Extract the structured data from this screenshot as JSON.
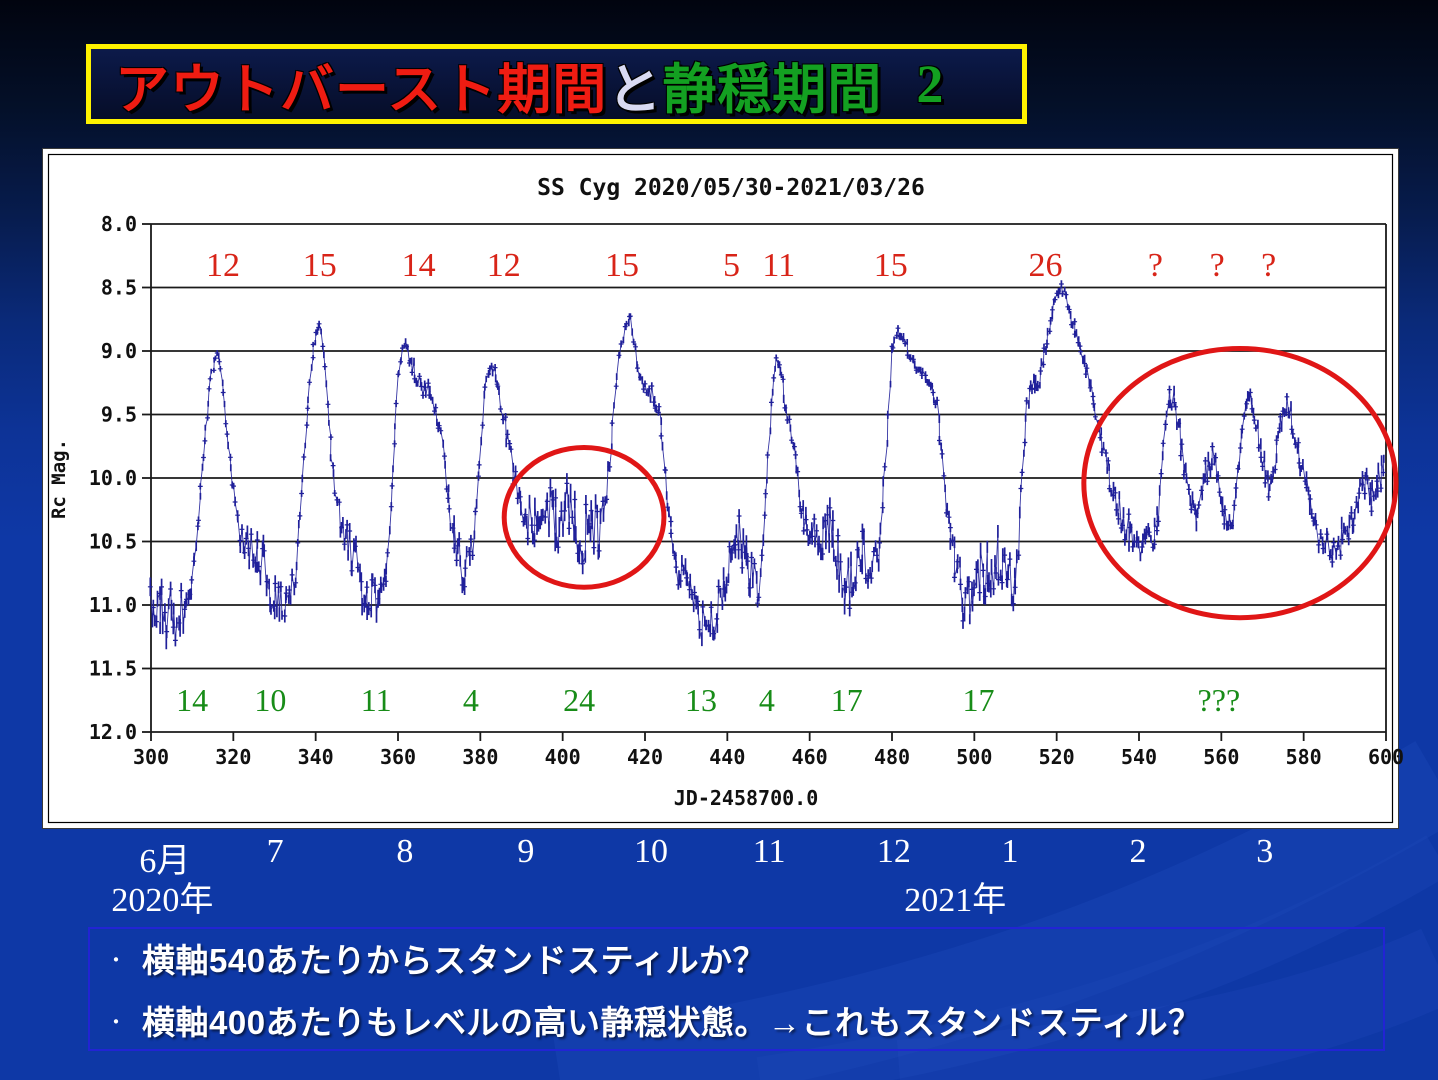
{
  "title": {
    "part_red": "アウトバースト期間",
    "connector": "と",
    "part_green": "静穏期間",
    "number": "2",
    "border_color": "#fef200",
    "red_color": "#ef1c12",
    "green_color": "#13a021"
  },
  "chart_data": {
    "type": "scatter",
    "title": "SS Cyg  2020/05/30-2021/03/26",
    "xlabel": "JD-2458700.0",
    "ylabel": "Rc Mag.",
    "xlim": [
      300,
      600
    ],
    "ylim": [
      8.0,
      12.0
    ],
    "y_axis_inverted": true,
    "x_ticks": [
      300,
      320,
      340,
      360,
      380,
      400,
      420,
      440,
      460,
      480,
      500,
      520,
      540,
      560,
      580,
      600
    ],
    "y_ticks": [
      8.0,
      8.5,
      9.0,
      9.5,
      10.0,
      10.5,
      11.0,
      11.5,
      12.0
    ],
    "grid": true,
    "marker_color": "#20209a",
    "series": [
      {
        "name": "SS Cyg Rc magnitude",
        "anchors_format": [
          "jd",
          "mag",
          "scatter_mag"
        ],
        "anchors": [
          [
            300,
            11.05,
            0.22
          ],
          [
            302,
            11.0,
            0.25
          ],
          [
            304,
            11.05,
            0.27
          ],
          [
            306,
            11.1,
            0.24
          ],
          [
            308,
            11.0,
            0.2
          ],
          [
            310,
            10.85,
            0.14
          ],
          [
            311.5,
            10.3,
            0.06
          ],
          [
            313,
            9.7,
            0.04
          ],
          [
            314.5,
            9.22,
            0.03
          ],
          [
            316,
            9.0,
            0.03
          ],
          [
            317,
            9.12,
            0.04
          ],
          [
            318.5,
            9.65,
            0.05
          ],
          [
            320,
            10.1,
            0.06
          ],
          [
            321.5,
            10.4,
            0.12
          ],
          [
            323,
            10.55,
            0.18
          ],
          [
            325,
            10.5,
            0.2
          ],
          [
            327,
            10.65,
            0.22
          ],
          [
            329,
            10.9,
            0.2
          ],
          [
            331,
            11.0,
            0.18
          ],
          [
            333,
            10.9,
            0.2
          ],
          [
            335,
            10.78,
            0.12
          ],
          [
            336.5,
            10.15,
            0.06
          ],
          [
            338,
            9.45,
            0.04
          ],
          [
            339.5,
            8.95,
            0.04
          ],
          [
            341,
            8.8,
            0.04
          ],
          [
            342.2,
            9.1,
            0.05
          ],
          [
            343.5,
            9.7,
            0.05
          ],
          [
            345,
            10.2,
            0.08
          ],
          [
            347,
            10.45,
            0.15
          ],
          [
            349,
            10.6,
            0.2
          ],
          [
            351,
            10.8,
            0.22
          ],
          [
            353,
            11.0,
            0.2
          ],
          [
            355,
            10.95,
            0.22
          ],
          [
            357,
            10.78,
            0.14
          ],
          [
            358.5,
            10.1,
            0.06
          ],
          [
            360,
            9.2,
            0.05
          ],
          [
            361.5,
            8.92,
            0.05
          ],
          [
            363,
            9.08,
            0.06
          ],
          [
            364.5,
            9.18,
            0.08
          ],
          [
            366,
            9.32,
            0.08
          ],
          [
            367.5,
            9.28,
            0.08
          ],
          [
            369,
            9.5,
            0.07
          ],
          [
            370.5,
            9.68,
            0.07
          ],
          [
            372,
            10.1,
            0.09
          ],
          [
            373.5,
            10.45,
            0.15
          ],
          [
            375,
            10.6,
            0.2
          ],
          [
            376.5,
            10.75,
            0.22
          ],
          [
            378.2,
            10.55,
            0.14
          ],
          [
            379.8,
            9.85,
            0.07
          ],
          [
            381.2,
            9.25,
            0.06
          ],
          [
            382.8,
            9.1,
            0.06
          ],
          [
            384.3,
            9.32,
            0.08
          ],
          [
            386,
            9.58,
            0.1
          ],
          [
            387.5,
            9.85,
            0.1
          ],
          [
            389,
            10.1,
            0.13
          ],
          [
            391,
            10.3,
            0.18
          ],
          [
            393,
            10.38,
            0.22
          ],
          [
            395,
            10.28,
            0.25
          ],
          [
            397,
            10.22,
            0.25
          ],
          [
            399,
            10.4,
            0.26
          ],
          [
            401,
            10.25,
            0.26
          ],
          [
            403,
            10.32,
            0.28
          ],
          [
            405,
            10.45,
            0.26
          ],
          [
            407,
            10.3,
            0.26
          ],
          [
            409,
            10.42,
            0.2
          ],
          [
            410.8,
            10.15,
            0.12
          ],
          [
            412.2,
            9.55,
            0.07
          ],
          [
            413.6,
            9.05,
            0.05
          ],
          [
            415,
            8.85,
            0.05
          ],
          [
            416.5,
            8.73,
            0.05
          ],
          [
            417.6,
            9.0,
            0.05
          ],
          [
            419,
            9.25,
            0.07
          ],
          [
            420.5,
            9.32,
            0.08
          ],
          [
            422,
            9.35,
            0.08
          ],
          [
            423.5,
            9.5,
            0.07
          ],
          [
            425,
            10.0,
            0.09
          ],
          [
            426.5,
            10.45,
            0.13
          ],
          [
            428,
            10.7,
            0.18
          ],
          [
            430,
            10.9,
            0.2
          ],
          [
            432,
            11.05,
            0.22
          ],
          [
            434,
            11.12,
            0.22
          ],
          [
            436,
            11.15,
            0.18
          ],
          [
            438,
            11.0,
            0.18
          ],
          [
            440,
            10.75,
            0.2
          ],
          [
            441.5,
            10.5,
            0.23
          ],
          [
            443,
            10.45,
            0.25
          ],
          [
            444.5,
            10.6,
            0.25
          ],
          [
            446,
            10.8,
            0.23
          ],
          [
            447.8,
            10.85,
            0.15
          ],
          [
            449.3,
            10.2,
            0.09
          ],
          [
            450.6,
            9.4,
            0.07
          ],
          [
            452,
            9.05,
            0.07
          ],
          [
            453.5,
            9.28,
            0.07
          ],
          [
            455,
            9.55,
            0.07
          ],
          [
            456.5,
            9.85,
            0.08
          ],
          [
            458,
            10.25,
            0.11
          ],
          [
            459.5,
            10.45,
            0.15
          ],
          [
            461,
            10.5,
            0.2
          ],
          [
            463,
            10.4,
            0.23
          ],
          [
            465,
            10.45,
            0.25
          ],
          [
            467,
            10.65,
            0.23
          ],
          [
            469,
            10.85,
            0.22
          ],
          [
            471,
            10.8,
            0.23
          ],
          [
            473,
            10.6,
            0.25
          ],
          [
            475,
            10.75,
            0.21
          ],
          [
            477,
            10.6,
            0.16
          ],
          [
            478.4,
            9.9,
            0.07
          ],
          [
            479.8,
            9.0,
            0.05
          ],
          [
            481.3,
            8.85,
            0.05
          ],
          [
            483.3,
            8.95,
            0.06
          ],
          [
            485.3,
            9.05,
            0.07
          ],
          [
            487.3,
            9.2,
            0.07
          ],
          [
            489.3,
            9.3,
            0.07
          ],
          [
            491,
            9.45,
            0.07
          ],
          [
            492.5,
            10.0,
            0.1
          ],
          [
            494,
            10.5,
            0.16
          ],
          [
            496,
            10.8,
            0.2
          ],
          [
            498,
            11.05,
            0.22
          ],
          [
            500,
            10.9,
            0.24
          ],
          [
            502,
            10.75,
            0.26
          ],
          [
            504,
            10.68,
            0.25
          ],
          [
            506,
            10.6,
            0.25
          ],
          [
            508,
            10.8,
            0.22
          ],
          [
            510,
            10.85,
            0.17
          ],
          [
            511.6,
            10.0,
            0.1
          ],
          [
            512.8,
            9.4,
            0.08
          ],
          [
            514,
            9.28,
            0.09
          ],
          [
            515.5,
            9.22,
            0.1
          ],
          [
            517,
            9.05,
            0.08
          ],
          [
            518.5,
            8.75,
            0.06
          ],
          [
            520,
            8.57,
            0.05
          ],
          [
            521.5,
            8.5,
            0.06
          ],
          [
            523,
            8.68,
            0.06
          ],
          [
            524.5,
            8.85,
            0.06
          ],
          [
            526,
            9.0,
            0.06
          ],
          [
            527.5,
            9.18,
            0.06
          ],
          [
            529,
            9.38,
            0.07
          ],
          [
            530.5,
            9.62,
            0.08
          ],
          [
            531.8,
            9.88,
            0.09
          ],
          [
            533,
            10.02,
            0.11
          ],
          [
            534.5,
            10.15,
            0.13
          ],
          [
            536,
            10.32,
            0.15
          ],
          [
            538,
            10.45,
            0.15
          ],
          [
            540,
            10.52,
            0.16
          ],
          [
            542,
            10.52,
            0.15
          ],
          [
            543.6,
            10.42,
            0.13
          ],
          [
            544.8,
            10.25,
            0.12
          ],
          [
            546,
            9.7,
            0.1
          ],
          [
            547.5,
            9.32,
            0.09
          ],
          [
            549,
            9.45,
            0.1
          ],
          [
            550.5,
            9.8,
            0.11
          ],
          [
            552,
            10.12,
            0.12
          ],
          [
            553.5,
            10.35,
            0.12
          ],
          [
            555,
            10.15,
            0.12
          ],
          [
            556.5,
            9.92,
            0.12
          ],
          [
            558,
            9.85,
            0.12
          ],
          [
            559.5,
            10.05,
            0.13
          ],
          [
            561,
            10.35,
            0.12
          ],
          [
            562.5,
            10.45,
            0.11
          ],
          [
            564,
            10.0,
            0.1
          ],
          [
            565.5,
            9.5,
            0.1
          ],
          [
            567,
            9.35,
            0.1
          ],
          [
            568.5,
            9.62,
            0.11
          ],
          [
            570,
            9.9,
            0.12
          ],
          [
            571.5,
            10.05,
            0.12
          ],
          [
            573,
            9.85,
            0.11
          ],
          [
            574.5,
            9.55,
            0.1
          ],
          [
            576,
            9.42,
            0.11
          ],
          [
            577.5,
            9.58,
            0.11
          ],
          [
            579,
            9.82,
            0.11
          ],
          [
            580.5,
            10.05,
            0.11
          ],
          [
            582,
            10.25,
            0.12
          ],
          [
            583.5,
            10.42,
            0.12
          ],
          [
            585.5,
            10.55,
            0.13
          ],
          [
            587.5,
            10.6,
            0.14
          ],
          [
            589.5,
            10.45,
            0.16
          ],
          [
            591.5,
            10.35,
            0.17
          ],
          [
            593.5,
            10.12,
            0.15
          ],
          [
            595,
            10.0,
            0.13
          ],
          [
            596.5,
            10.15,
            0.14
          ],
          [
            598,
            10.02,
            0.14
          ],
          [
            599.2,
            9.92,
            0.12
          ],
          [
            600,
            9.95,
            0.1
          ]
        ]
      }
    ],
    "outburst_day_counts": {
      "color": "#d82418",
      "labels": [
        {
          "text": "12",
          "jd": 317.5
        },
        {
          "text": "15",
          "jd": 341
        },
        {
          "text": "14",
          "jd": 365
        },
        {
          "text": "12",
          "jd": 385.7
        },
        {
          "text": "15",
          "jd": 414.4
        },
        {
          "text": "5",
          "jd": 441
        },
        {
          "text": "11",
          "jd": 452.5
        },
        {
          "text": "15",
          "jd": 479.7
        },
        {
          "text": "26",
          "jd": 517.3
        },
        {
          "text": "?",
          "jd": 544
        },
        {
          "text": "?",
          "jd": 559
        },
        {
          "text": "?",
          "jd": 571.5
        }
      ]
    },
    "quiescence_day_counts": {
      "color": "#188c18",
      "labels": [
        {
          "text": "14",
          "jd": 310
        },
        {
          "text": "10",
          "jd": 329
        },
        {
          "text": "11",
          "jd": 354.7
        },
        {
          "text": "4",
          "jd": 377.7
        },
        {
          "text": "24",
          "jd": 404
        },
        {
          "text": "13",
          "jd": 433.6
        },
        {
          "text": "4",
          "jd": 449.6
        },
        {
          "text": "17",
          "jd": 469
        },
        {
          "text": "17",
          "jd": 501
        },
        {
          "text": "???",
          "jd": 559.4
        }
      ]
    },
    "highlight_ellipses": [
      {
        "jd": 405.2,
        "mag": 10.31,
        "jd_r": 19.4,
        "mag_r": 0.55,
        "color": "#e01616"
      },
      {
        "jd": 564.5,
        "mag": 10.04,
        "jd_r": 37.9,
        "mag_r": 1.06,
        "color": "#e01616"
      }
    ],
    "month_axis": {
      "months": [
        {
          "label": "6月",
          "jd": 303.6
        },
        {
          "label": "7",
          "jd": 330.4
        },
        {
          "label": "8",
          "jd": 361.9
        },
        {
          "label": "9",
          "jd": 391.3
        },
        {
          "label": "10",
          "jd": 421.7
        },
        {
          "label": "11",
          "jd": 450.4
        },
        {
          "label": "12",
          "jd": 480.7
        },
        {
          "label": "1",
          "jd": 508.9
        },
        {
          "label": "2",
          "jd": 540.0
        },
        {
          "label": "3",
          "jd": 570.8
        }
      ],
      "years": [
        {
          "label": "2020年",
          "jd": 303.0
        },
        {
          "label": "2021年",
          "jd": 495.6
        }
      ]
    }
  },
  "footer": {
    "bullet_char": "・",
    "bullets": [
      "横軸540あたりからスタンドスティルか？",
      "横軸400あたりもレベルの高い静穏状態。→これもスタンドスティル？"
    ],
    "border_color": "#2224d4"
  }
}
